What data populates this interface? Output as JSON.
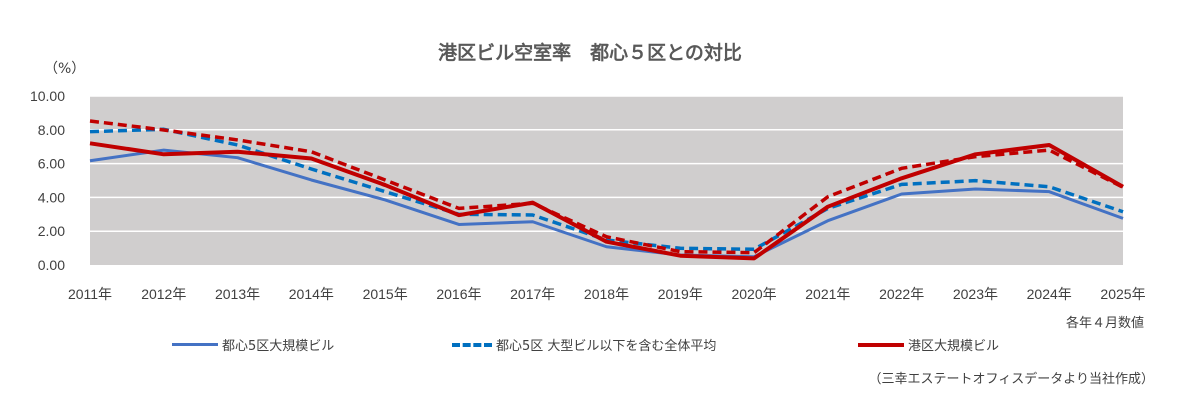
{
  "chart_data": {
    "type": "line",
    "title": "港区ビル空室率　都心５区との対比",
    "ylabel": "（%）",
    "ylim": [
      0,
      10
    ],
    "yticks": [
      "0.00",
      "2.00",
      "4.00",
      "6.00",
      "8.00",
      "10.00"
    ],
    "grid": true,
    "categories": [
      "2011年",
      "2012年",
      "2013年",
      "2014年",
      "2015年",
      "2016年",
      "2017年",
      "2018年",
      "2019年",
      "2020年",
      "2021年",
      "2022年",
      "2023年",
      "2024年",
      "2025年"
    ],
    "note": "各年４月数値",
    "source": "（三幸エステートオフィスデータより当社作成）",
    "legend_position": "bottom",
    "series": [
      {
        "name": "都心5区大規模ビル",
        "color": "#4472C4",
        "style": "solid",
        "values": [
          6.17,
          6.8,
          6.35,
          5.03,
          3.85,
          2.4,
          2.56,
          1.08,
          0.59,
          0.49,
          2.62,
          4.2,
          4.5,
          4.34,
          2.76
        ]
      },
      {
        "name": "都心5区 大型ビル以下を含む全体平均",
        "color": "#0070C0",
        "style": "dashed",
        "values": [
          7.89,
          8.03,
          7.1,
          5.68,
          4.34,
          3.0,
          2.96,
          1.48,
          0.99,
          0.93,
          3.35,
          4.77,
          4.99,
          4.63,
          3.15
        ]
      },
      {
        "name": "港区大規模ビル",
        "color": "#C00000",
        "style": "solid",
        "values": [
          7.2,
          6.55,
          6.7,
          6.3,
          4.73,
          2.95,
          3.69,
          1.38,
          0.55,
          0.39,
          3.45,
          5.13,
          6.55,
          7.1,
          4.63
        ]
      },
      {
        "color": "#C00000",
        "style": "dashed",
        "values": [
          8.52,
          7.99,
          7.4,
          6.7,
          5.03,
          3.35,
          3.65,
          1.67,
          0.79,
          0.73,
          4.04,
          5.72,
          6.41,
          6.8,
          4.6
        ]
      }
    ]
  }
}
